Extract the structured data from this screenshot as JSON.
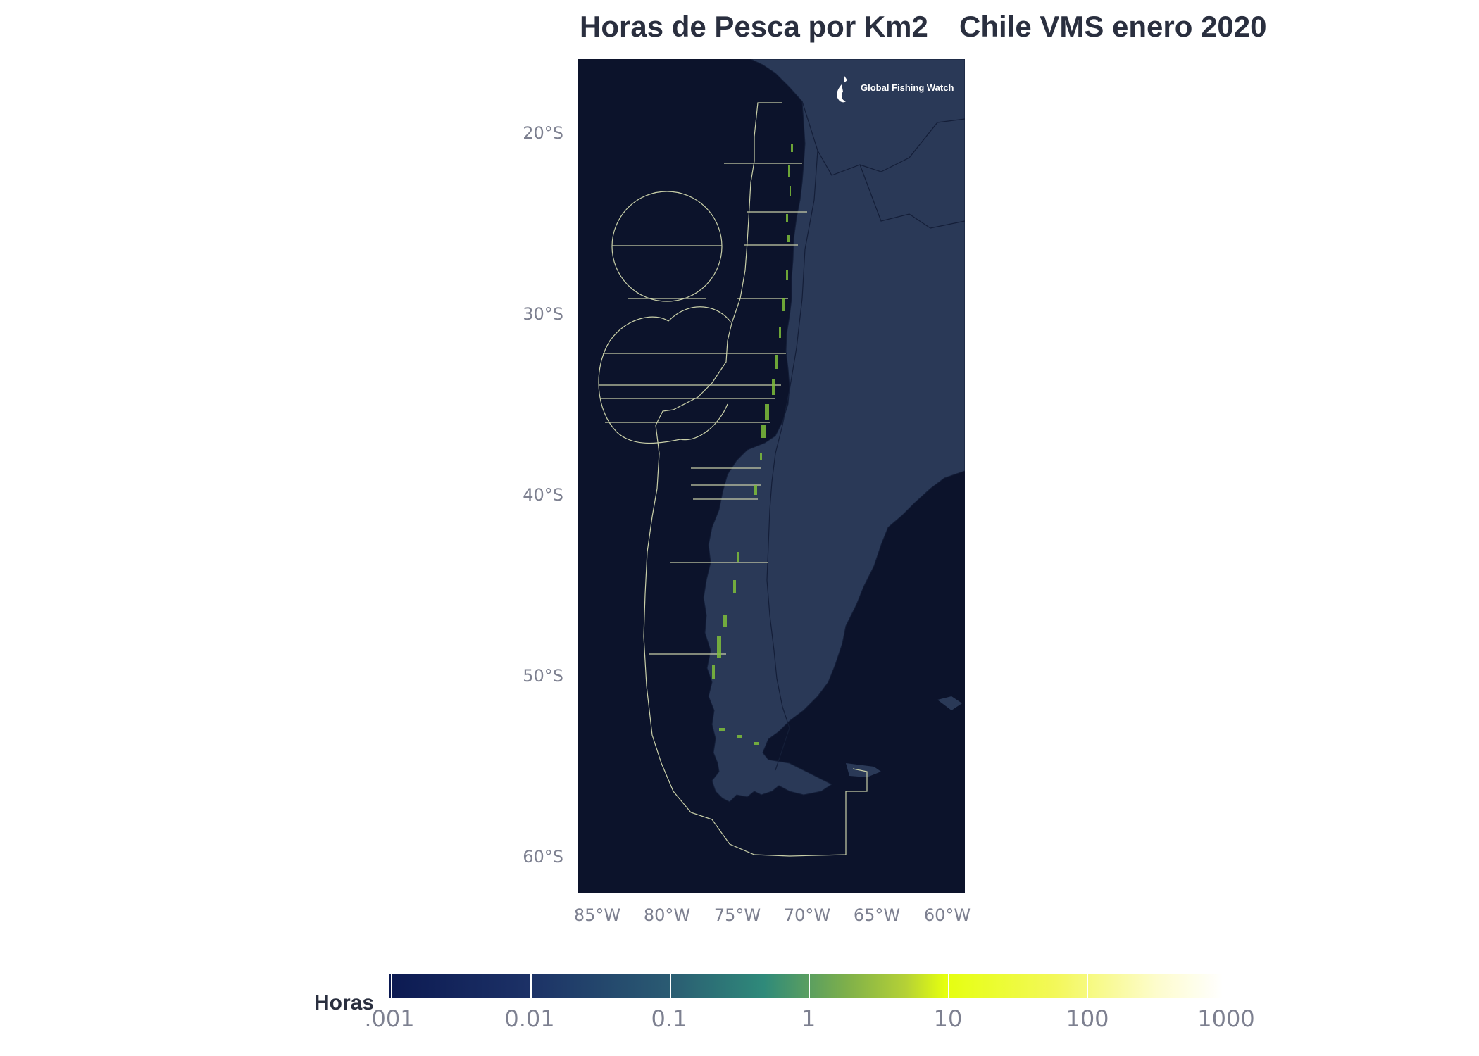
{
  "title": {
    "left": "Horas de Pesca por Km2",
    "right": "Chile VMS enero 2020"
  },
  "map": {
    "ocean_color": "#0c132b",
    "land_color": "#2a3957",
    "border_color": "#141e38",
    "eez_line_color": "#c9cfa8",
    "fishing_color": "#7fbf3a",
    "logo_text": "Global Fishing Watch",
    "lat_labels": [
      "20°S",
      "30°S",
      "40°S",
      "50°S",
      "60°S"
    ],
    "lon_labels": [
      "85°W",
      "80°W",
      "75°W",
      "70°W",
      "65°W",
      "60°W"
    ]
  },
  "legend": {
    "title": "Horas",
    "labels": [
      ".001",
      "0.01",
      "0.1",
      "1",
      "10",
      "100",
      "1000"
    ]
  }
}
